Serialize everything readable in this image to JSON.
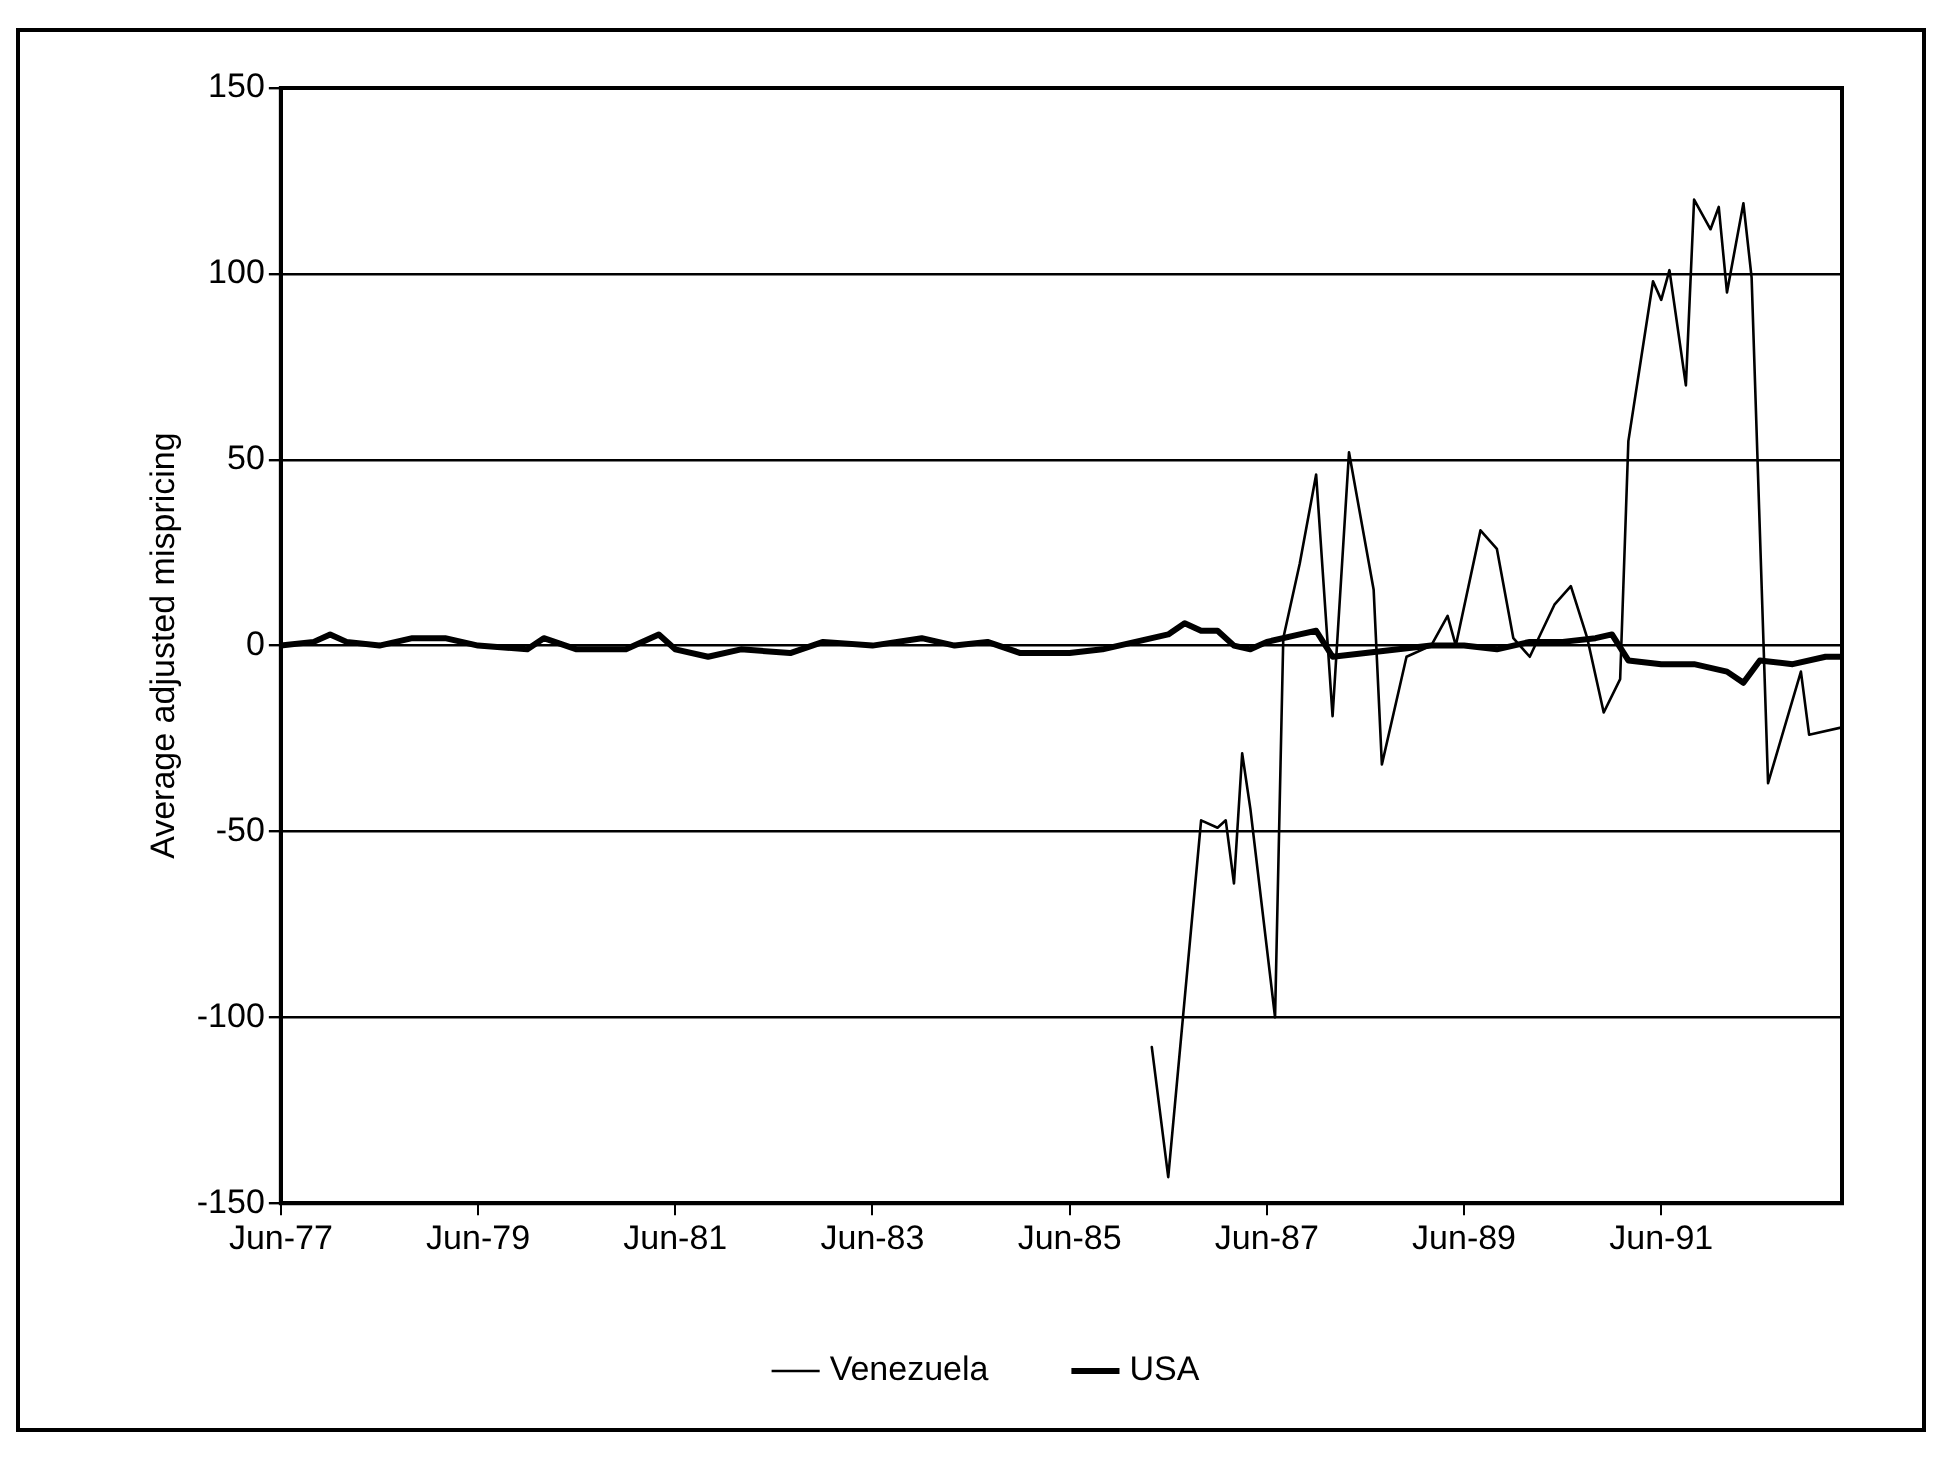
{
  "chart_data": {
    "type": "line",
    "ylabel": "Average adjusted mispricing",
    "xlim": [
      "1977-06",
      "1993-04"
    ],
    "xticks": [
      {
        "value": "1977-06",
        "label": "Jun-77"
      },
      {
        "value": "1979-06",
        "label": "Jun-79"
      },
      {
        "value": "1981-06",
        "label": "Jun-81"
      },
      {
        "value": "1983-06",
        "label": "Jun-83"
      },
      {
        "value": "1985-06",
        "label": "Jun-85"
      },
      {
        "value": "1987-06",
        "label": "Jun-87"
      },
      {
        "value": "1989-06",
        "label": "Jun-89"
      },
      {
        "value": "1991-06",
        "label": "Jun-91"
      }
    ],
    "ylim": [
      -150,
      150
    ],
    "yticks": [
      -150,
      -100,
      -50,
      0,
      50,
      100,
      150
    ],
    "grid": "y",
    "legend": "bottom",
    "marker": "none",
    "line_style": "solid",
    "series": [
      {
        "name": "Venezuela",
        "color": "#000000",
        "x": [
          "1986-04",
          "1986-06",
          "1986-10",
          "1986-12",
          "1987-01",
          "1987-02",
          "1987-03",
          "1987-04",
          "1987-07",
          "1987-08",
          "1987-10",
          "1987-12",
          "1988-02",
          "1988-04",
          "1988-07",
          "1988-08",
          "1988-11",
          "1989-02",
          "1989-04",
          "1989-05",
          "1989-08",
          "1989-10",
          "1989-12",
          "1990-02",
          "1990-05",
          "1990-07",
          "1990-09",
          "1990-11",
          "1991-01",
          "1991-02",
          "1991-05",
          "1991-06",
          "1991-07",
          "1991-09",
          "1991-10",
          "1991-12",
          "1992-01",
          "1992-02",
          "1992-04",
          "1992-05",
          "1992-07",
          "1992-11",
          "1992-12",
          "1993-04"
        ],
        "values": [
          -108,
          -143,
          -47,
          -49,
          -47,
          -64,
          -29,
          -44,
          -100,
          2,
          22,
          46,
          -19,
          52,
          15,
          -32,
          -3,
          0,
          8,
          0,
          31,
          26,
          2,
          -3,
          11,
          16,
          2,
          -18,
          -9,
          55,
          98,
          93,
          101,
          70,
          120,
          112,
          118,
          95,
          119,
          99,
          -37,
          -7,
          -24,
          -22
        ]
      },
      {
        "name": "USA",
        "color": "#000000",
        "x": [
          "1977-06",
          "1977-10",
          "1977-12",
          "1978-02",
          "1978-06",
          "1978-10",
          "1979-02",
          "1979-06",
          "1979-12",
          "1980-02",
          "1980-06",
          "1980-12",
          "1981-04",
          "1981-06",
          "1981-10",
          "1982-02",
          "1982-08",
          "1982-12",
          "1983-06",
          "1983-12",
          "1984-04",
          "1984-08",
          "1984-12",
          "1985-06",
          "1985-10",
          "1986-02",
          "1986-06",
          "1986-08",
          "1986-10",
          "1986-12",
          "1987-02",
          "1987-04",
          "1987-06",
          "1987-10",
          "1987-12",
          "1988-02",
          "1988-06",
          "1988-10",
          "1989-02",
          "1989-06",
          "1989-10",
          "1990-02",
          "1990-06",
          "1990-10",
          "1990-12",
          "1991-02",
          "1991-06",
          "1991-10",
          "1992-02",
          "1992-04",
          "1992-06",
          "1992-10",
          "1993-02",
          "1993-04"
        ],
        "values": [
          0,
          1,
          3,
          1,
          0,
          2,
          2,
          0,
          -1,
          2,
          -1,
          -1,
          3,
          -1,
          -3,
          -1,
          -2,
          1,
          0,
          2,
          0,
          1,
          -2,
          -2,
          -1,
          1,
          3,
          6,
          4,
          4,
          0,
          -1,
          1,
          3,
          4,
          -3,
          -2,
          -1,
          0,
          0,
          -1,
          1,
          1,
          2,
          3,
          -4,
          -5,
          -5,
          -7,
          -10,
          -4,
          -5,
          -3,
          -3
        ]
      }
    ]
  }
}
